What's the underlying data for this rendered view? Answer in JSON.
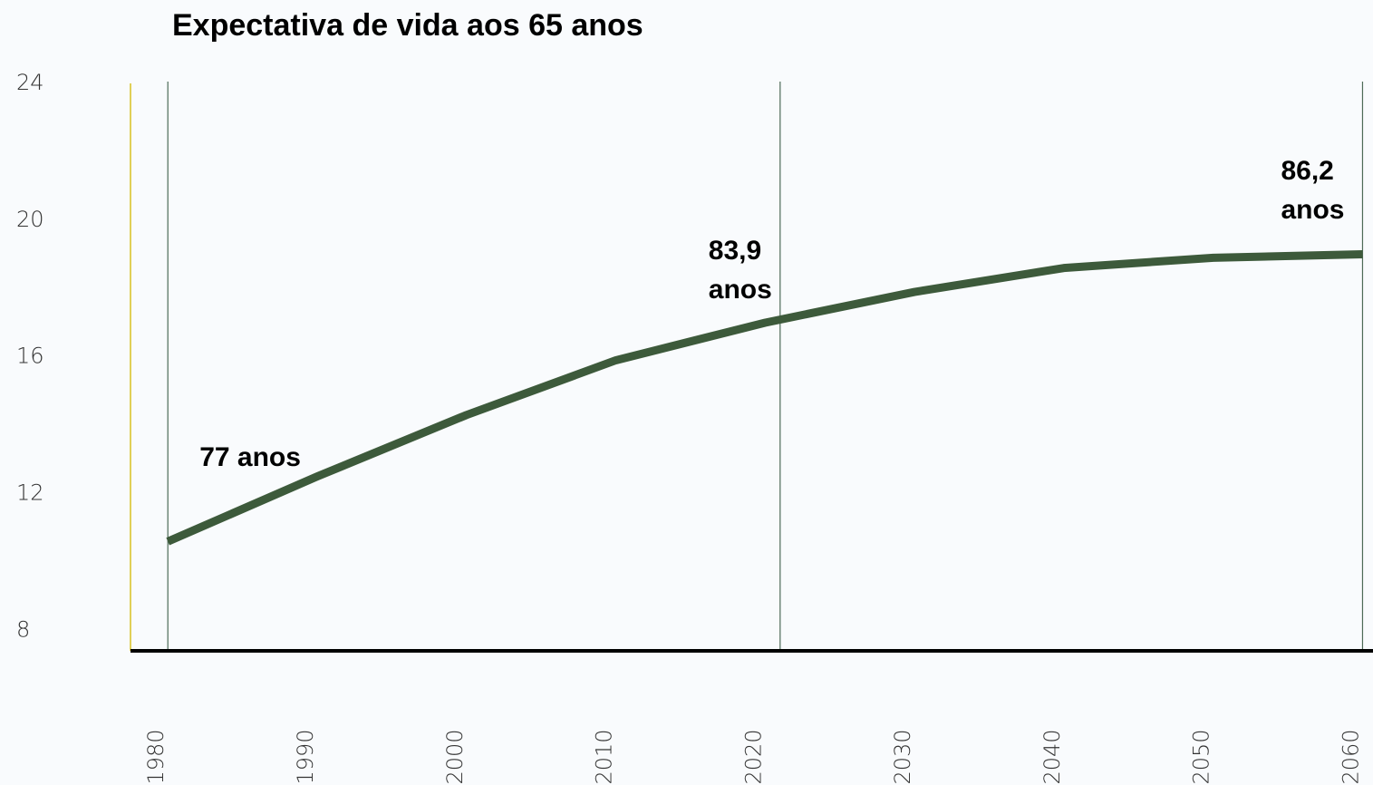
{
  "chart_data": {
    "type": "line",
    "title": "Expectativa de vida aos 65 anos",
    "x": [
      1980,
      1990,
      2000,
      2010,
      2020,
      2030,
      2040,
      2050,
      2060
    ],
    "series": [
      {
        "name": "Expectativa de vida aos 65 anos",
        "color": "#3d5a3b",
        "values": [
          10.6,
          12.5,
          14.3,
          15.9,
          17.0,
          17.9,
          18.6,
          18.9,
          19.0
        ]
      }
    ],
    "xlim": [
      1977.5,
      2060.7
    ],
    "xticks": [
      1980,
      1990,
      2000,
      2010,
      2020,
      2030,
      2040,
      2050,
      2060
    ],
    "ylim": [
      7.4,
      24
    ],
    "yticks": [
      24,
      20,
      16,
      12,
      8
    ],
    "annotations": [
      {
        "x": 1980,
        "lines": [
          "77 anos"
        ]
      },
      {
        "x": 2021,
        "lines": [
          "83,9",
          "anos"
        ]
      },
      {
        "x": 2060,
        "lines": [
          "86,2",
          "anos"
        ]
      }
    ]
  }
}
